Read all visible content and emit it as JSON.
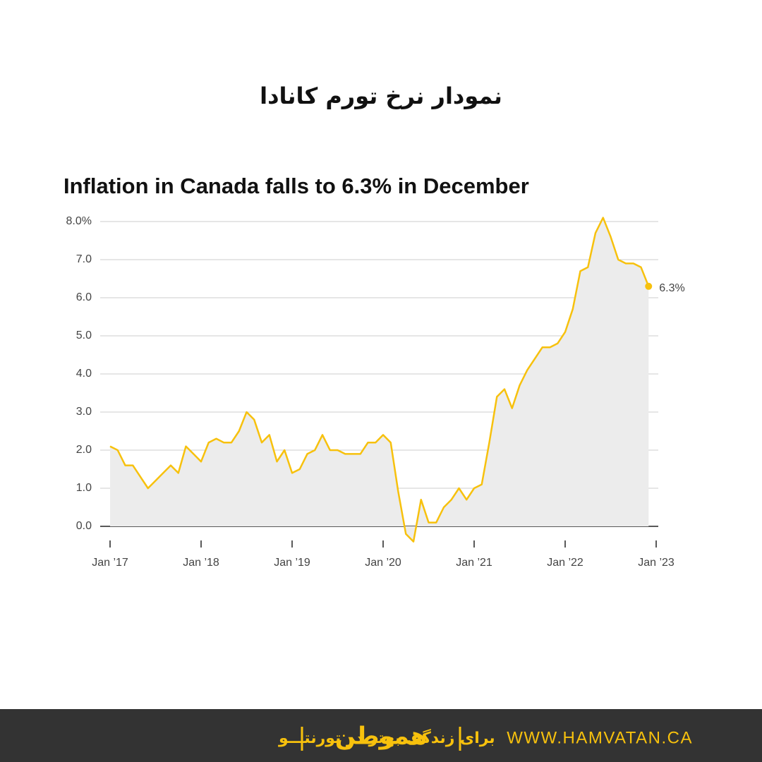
{
  "header": {
    "title": "نمودار نرخ تورم کانادا"
  },
  "chart_data": {
    "type": "line",
    "title": "Inflation in Canada falls to 6.3% in December",
    "x": [
      "2017-01",
      "2017-02",
      "2017-03",
      "2017-04",
      "2017-05",
      "2017-06",
      "2017-07",
      "2017-08",
      "2017-09",
      "2017-10",
      "2017-11",
      "2017-12",
      "2018-01",
      "2018-02",
      "2018-03",
      "2018-04",
      "2018-05",
      "2018-06",
      "2018-07",
      "2018-08",
      "2018-09",
      "2018-10",
      "2018-11",
      "2018-12",
      "2019-01",
      "2019-02",
      "2019-03",
      "2019-04",
      "2019-05",
      "2019-06",
      "2019-07",
      "2019-08",
      "2019-09",
      "2019-10",
      "2019-11",
      "2019-12",
      "2020-01",
      "2020-02",
      "2020-03",
      "2020-04",
      "2020-05",
      "2020-06",
      "2020-07",
      "2020-08",
      "2020-09",
      "2020-10",
      "2020-11",
      "2020-12",
      "2021-01",
      "2021-02",
      "2021-03",
      "2021-04",
      "2021-05",
      "2021-06",
      "2021-07",
      "2021-08",
      "2021-09",
      "2021-10",
      "2021-11",
      "2021-12",
      "2022-01",
      "2022-02",
      "2022-03",
      "2022-04",
      "2022-05",
      "2022-06",
      "2022-07",
      "2022-08",
      "2022-09",
      "2022-10",
      "2022-11",
      "2022-12"
    ],
    "values": [
      2.1,
      2.0,
      1.6,
      1.6,
      1.3,
      1.0,
      1.2,
      1.4,
      1.6,
      1.4,
      2.1,
      1.9,
      1.7,
      2.2,
      2.3,
      2.2,
      2.2,
      2.5,
      3.0,
      2.8,
      2.2,
      2.4,
      1.7,
      2.0,
      1.4,
      1.5,
      1.9,
      2.0,
      2.4,
      2.0,
      2.0,
      1.9,
      1.9,
      1.9,
      2.2,
      2.2,
      2.4,
      2.2,
      0.9,
      -0.2,
      -0.4,
      0.7,
      0.1,
      0.1,
      0.5,
      0.7,
      1.0,
      0.7,
      1.0,
      1.1,
      2.2,
      3.4,
      3.6,
      3.1,
      3.7,
      4.1,
      4.4,
      4.7,
      4.7,
      4.8,
      5.1,
      5.7,
      6.7,
      6.8,
      7.7,
      8.1,
      7.6,
      7.0,
      6.9,
      6.9,
      6.8,
      6.3
    ],
    "color": "#f7c10d",
    "end_label": "6.3%",
    "xticks": [
      {
        "value": "2017-01",
        "label": "Jan ’17"
      },
      {
        "value": "2018-01",
        "label": "Jan ’18"
      },
      {
        "value": "2019-01",
        "label": "Jan ’19"
      },
      {
        "value": "2020-01",
        "label": "Jan ’20"
      },
      {
        "value": "2021-01",
        "label": "Jan ’21"
      },
      {
        "value": "2022-01",
        "label": "Jan ’22"
      },
      {
        "value": "2023-01",
        "label": "Jan ’23"
      }
    ],
    "xlim": [
      "2017-01",
      "2023-01"
    ],
    "ylim": [
      0,
      8
    ],
    "yticks": [
      {
        "value": 0,
        "label": "0.0"
      },
      {
        "value": 1,
        "label": "1.0"
      },
      {
        "value": 2,
        "label": "2.0"
      },
      {
        "value": 3,
        "label": "3.0"
      },
      {
        "value": 4,
        "label": "4.0"
      },
      {
        "value": 5,
        "label": "5.0"
      },
      {
        "value": 6,
        "label": "6.0"
      },
      {
        "value": 7,
        "label": "7.0"
      },
      {
        "value": 8,
        "label": "8.0%"
      }
    ],
    "grid": true
  },
  "footer": {
    "tagline": "برای زندگی بهتر در تورنتـــو",
    "logo": "هموطن",
    "website": "WWW.HAMVATAN.CA"
  }
}
